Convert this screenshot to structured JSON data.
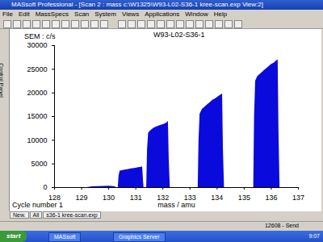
{
  "window": {
    "title": "MASsoft Professional - [Scan 2 : mass c:\\W1325\\W93-L02-S36-1 kree-scan.exp View:2]"
  },
  "menu": [
    "File",
    "Edit",
    "MassSpecs",
    "Scan",
    "System",
    "Views",
    "Applications",
    "Window",
    "Help"
  ],
  "side_tab": "Control Panel",
  "chart_data": {
    "type": "area",
    "title": "W93-L02-S36-1",
    "ylabel": "SEM : c/s",
    "xlabel": "mass / amu",
    "color": "#0a0adc",
    "grid": false,
    "x": [
      128,
      129.2,
      129.4,
      129.8,
      130.0,
      130.2,
      130.3,
      130.35,
      130.38,
      130.42,
      130.5,
      130.6,
      130.7,
      130.8,
      130.9,
      131.0,
      131.1,
      131.2,
      131.25,
      131.28,
      131.3,
      131.4,
      131.43,
      131.47,
      131.55,
      131.65,
      131.75,
      131.85,
      131.95,
      132.05,
      132.15,
      132.2,
      132.23,
      132.27,
      133.3,
      133.33,
      133.37,
      133.45,
      133.55,
      133.65,
      133.75,
      133.85,
      133.95,
      134.05,
      134.15,
      134.2,
      134.23,
      134.27,
      135.35,
      135.38,
      135.42,
      135.5,
      135.6,
      135.7,
      135.8,
      135.9,
      136.0,
      136.1,
      136.2,
      136.25,
      136.28,
      136.32,
      137
    ],
    "values": [
      0,
      0,
      150,
      250,
      300,
      200,
      0,
      0,
      2500,
      3500,
      3600,
      3700,
      3800,
      3900,
      4000,
      4100,
      4200,
      4300,
      4400,
      1500,
      0,
      0,
      8000,
      11500,
      12000,
      12500,
      12800,
      13000,
      13200,
      13400,
      13700,
      14000,
      6000,
      0,
      0,
      10000,
      15500,
      16500,
      17000,
      17500,
      18000,
      18500,
      18800,
      19200,
      19600,
      19800,
      8000,
      0,
      0,
      15000,
      22500,
      23500,
      24000,
      24500,
      25000,
      25500,
      26000,
      26300,
      26800,
      27000,
      12000,
      0,
      0
    ],
    "xlim": [
      128,
      137
    ],
    "xticks": [
      128,
      129,
      130,
      131,
      132,
      133,
      134,
      135,
      136,
      137
    ],
    "ylim": [
      0,
      30000
    ],
    "yticks": [
      0,
      5000,
      10000,
      15000,
      20000,
      25000,
      30000
    ]
  },
  "footer": {
    "cycle": "Cycle number 1",
    "tabs": [
      "New.",
      "All",
      "s36-1 kree-scan.exp"
    ]
  },
  "status": {
    "right": "12608 - Send"
  },
  "taskbar": {
    "start": "start",
    "items": [
      "MASsoft",
      "Graphics Server"
    ],
    "clock": "9:07"
  }
}
